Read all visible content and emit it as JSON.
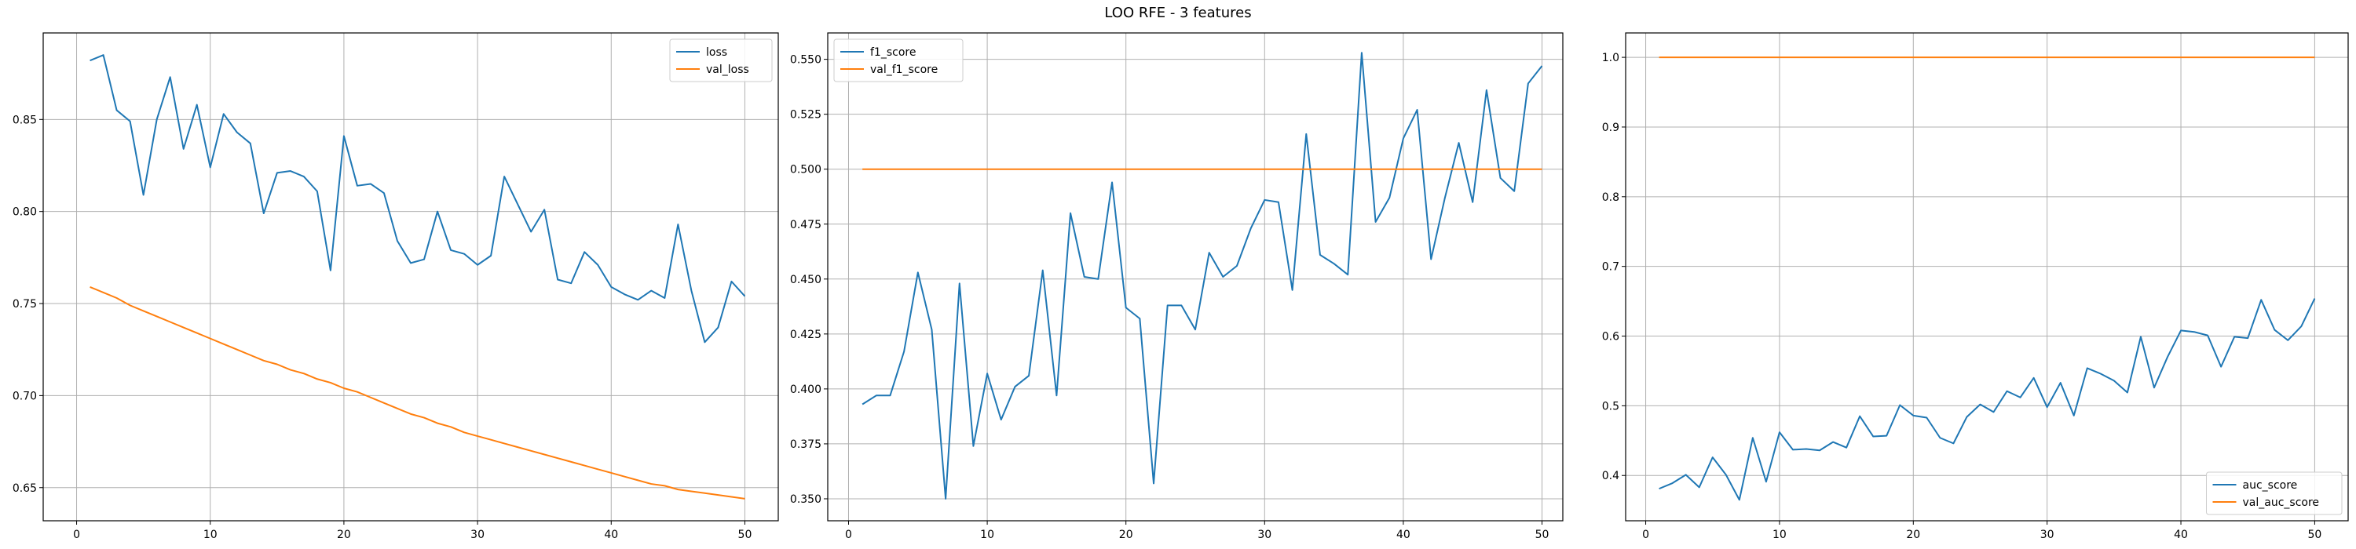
{
  "figure": {
    "title": "LOO RFE - 3 features",
    "colors": {
      "series1": "#1f77b4",
      "series2": "#ff7f0e",
      "grid": "#b0b0b0",
      "axes": "#000000"
    }
  },
  "chart_data": [
    {
      "type": "line",
      "title": "",
      "xlabel": "",
      "ylabel": "",
      "grid": true,
      "legend_position": "top-right",
      "xlim": [
        -2.5,
        52.5
      ],
      "ylim": [
        0.632,
        0.897
      ],
      "xticks": [
        0,
        10,
        20,
        30,
        40,
        50
      ],
      "yticks": [
        0.65,
        0.7,
        0.75,
        0.8,
        0.85
      ],
      "ytick_labels": [
        "0.65",
        "0.70",
        "0.75",
        "0.80",
        "0.85"
      ],
      "x": [
        1,
        2,
        3,
        4,
        5,
        6,
        7,
        8,
        9,
        10,
        11,
        12,
        13,
        14,
        15,
        16,
        17,
        18,
        19,
        20,
        21,
        22,
        23,
        24,
        25,
        26,
        27,
        28,
        29,
        30,
        31,
        32,
        33,
        34,
        35,
        36,
        37,
        38,
        39,
        40,
        41,
        42,
        43,
        44,
        45,
        46,
        47,
        48,
        49,
        50
      ],
      "series": [
        {
          "name": "loss",
          "color": "#1f77b4",
          "values": [
            0.882,
            0.885,
            0.855,
            0.849,
            0.809,
            0.85,
            0.873,
            0.834,
            0.858,
            0.824,
            0.853,
            0.843,
            0.837,
            0.799,
            0.821,
            0.822,
            0.819,
            0.811,
            0.768,
            0.841,
            0.814,
            0.815,
            0.81,
            0.784,
            0.772,
            0.774,
            0.8,
            0.779,
            0.777,
            0.771,
            0.776,
            0.819,
            0.804,
            0.789,
            0.801,
            0.763,
            0.761,
            0.778,
            0.771,
            0.759,
            0.755,
            0.752,
            0.757,
            0.753,
            0.793,
            0.757,
            0.729,
            0.737,
            0.762,
            0.754
          ]
        },
        {
          "name": "val_loss",
          "color": "#ff7f0e",
          "values": [
            0.759,
            0.756,
            0.753,
            0.749,
            0.746,
            0.743,
            0.74,
            0.737,
            0.734,
            0.731,
            0.728,
            0.725,
            0.722,
            0.719,
            0.717,
            0.714,
            0.712,
            0.709,
            0.707,
            0.704,
            0.702,
            0.699,
            0.696,
            0.693,
            0.69,
            0.688,
            0.685,
            0.683,
            0.68,
            0.678,
            0.676,
            0.674,
            0.672,
            0.67,
            0.668,
            0.666,
            0.664,
            0.662,
            0.66,
            0.658,
            0.656,
            0.654,
            0.652,
            0.651,
            0.649,
            0.648,
            0.647,
            0.646,
            0.645,
            0.644
          ]
        }
      ]
    },
    {
      "type": "line",
      "title": "",
      "xlabel": "",
      "ylabel": "",
      "grid": true,
      "legend_position": "top-left",
      "xlim": [
        -1.5,
        51.5
      ],
      "ylim": [
        0.34,
        0.562
      ],
      "xticks": [
        0,
        10,
        20,
        30,
        40,
        50
      ],
      "yticks": [
        0.35,
        0.375,
        0.4,
        0.425,
        0.45,
        0.475,
        0.5,
        0.525,
        0.55
      ],
      "ytick_labels": [
        "0.350",
        "0.375",
        "0.400",
        "0.425",
        "0.450",
        "0.475",
        "0.500",
        "0.525",
        "0.550"
      ],
      "x": [
        1,
        2,
        3,
        4,
        5,
        6,
        7,
        8,
        9,
        10,
        11,
        12,
        13,
        14,
        15,
        16,
        17,
        18,
        19,
        20,
        21,
        22,
        23,
        24,
        25,
        26,
        27,
        28,
        29,
        30,
        31,
        32,
        33,
        34,
        35,
        36,
        37,
        38,
        39,
        40,
        41,
        42,
        43,
        44,
        45,
        46,
        47,
        48,
        49,
        50
      ],
      "series": [
        {
          "name": "f1_score",
          "color": "#1f77b4",
          "values": [
            0.393,
            0.397,
            0.397,
            0.417,
            0.453,
            0.427,
            0.35,
            0.448,
            0.374,
            0.407,
            0.386,
            0.401,
            0.406,
            0.454,
            0.397,
            0.48,
            0.451,
            0.45,
            0.494,
            0.437,
            0.432,
            0.357,
            0.438,
            0.438,
            0.427,
            0.462,
            0.451,
            0.456,
            0.473,
            0.486,
            0.485,
            0.445,
            0.516,
            0.461,
            0.457,
            0.452,
            0.553,
            0.476,
            0.487,
            0.514,
            0.527,
            0.459,
            0.487,
            0.512,
            0.485,
            0.536,
            0.496,
            0.49,
            0.539,
            0.547
          ]
        },
        {
          "name": "val_f1_score",
          "color": "#ff7f0e",
          "values": [
            0.5,
            0.5,
            0.5,
            0.5,
            0.5,
            0.5,
            0.5,
            0.5,
            0.5,
            0.5,
            0.5,
            0.5,
            0.5,
            0.5,
            0.5,
            0.5,
            0.5,
            0.5,
            0.5,
            0.5,
            0.5,
            0.5,
            0.5,
            0.5,
            0.5,
            0.5,
            0.5,
            0.5,
            0.5,
            0.5,
            0.5,
            0.5,
            0.5,
            0.5,
            0.5,
            0.5,
            0.5,
            0.5,
            0.5,
            0.5,
            0.5,
            0.5,
            0.5,
            0.5,
            0.5,
            0.5,
            0.5,
            0.5,
            0.5,
            0.5
          ]
        }
      ]
    },
    {
      "type": "line",
      "title": "",
      "xlabel": "",
      "ylabel": "",
      "grid": true,
      "legend_position": "bottom-right",
      "xlim": [
        -1.5,
        52.5
      ],
      "ylim": [
        0.335,
        1.035
      ],
      "xticks": [
        0,
        10,
        20,
        30,
        40,
        50
      ],
      "yticks": [
        0.4,
        0.5,
        0.6,
        0.7,
        0.8,
        0.9,
        1.0
      ],
      "ytick_labels": [
        "0.4",
        "0.5",
        "0.6",
        "0.7",
        "0.8",
        "0.9",
        "1.0"
      ],
      "x": [
        1,
        2,
        3,
        4,
        5,
        6,
        7,
        8,
        9,
        10,
        11,
        12,
        13,
        14,
        15,
        16,
        17,
        18,
        19,
        20,
        21,
        22,
        23,
        24,
        25,
        26,
        27,
        28,
        29,
        30,
        31,
        32,
        33,
        34,
        35,
        36,
        37,
        38,
        39,
        40,
        41,
        42,
        43,
        44,
        45,
        46,
        47,
        48,
        49,
        50
      ],
      "series": [
        {
          "name": "auc_score",
          "color": "#1f77b4",
          "values": [
            0.381,
            0.389,
            0.401,
            0.383,
            0.426,
            0.401,
            0.365,
            0.454,
            0.391,
            0.462,
            0.437,
            0.438,
            0.436,
            0.448,
            0.44,
            0.485,
            0.456,
            0.457,
            0.501,
            0.486,
            0.483,
            0.454,
            0.446,
            0.484,
            0.502,
            0.491,
            0.521,
            0.512,
            0.54,
            0.498,
            0.533,
            0.486,
            0.554,
            0.546,
            0.536,
            0.519,
            0.599,
            0.526,
            0.57,
            0.608,
            0.606,
            0.601,
            0.556,
            0.599,
            0.597,
            0.652,
            0.609,
            0.594,
            0.614,
            0.654
          ]
        },
        {
          "name": "val_auc_score",
          "color": "#ff7f0e",
          "values": [
            1.0,
            1.0,
            1.0,
            1.0,
            1.0,
            1.0,
            1.0,
            1.0,
            1.0,
            1.0,
            1.0,
            1.0,
            1.0,
            1.0,
            1.0,
            1.0,
            1.0,
            1.0,
            1.0,
            1.0,
            1.0,
            1.0,
            1.0,
            1.0,
            1.0,
            1.0,
            1.0,
            1.0,
            1.0,
            1.0,
            1.0,
            1.0,
            1.0,
            1.0,
            1.0,
            1.0,
            1.0,
            1.0,
            1.0,
            1.0,
            1.0,
            1.0,
            1.0,
            1.0,
            1.0,
            1.0,
            1.0,
            1.0,
            1.0,
            1.0
          ]
        }
      ]
    }
  ]
}
